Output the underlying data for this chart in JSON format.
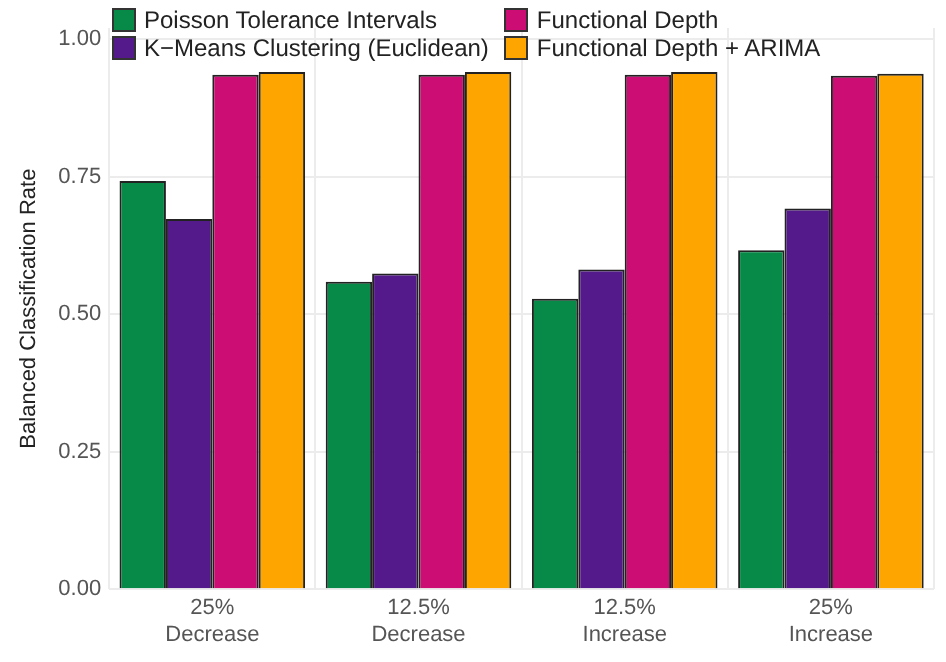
{
  "chart_data": {
    "type": "bar",
    "ylabel": "Balanced Classification Rate",
    "categories": [
      "25% Decrease",
      "12.5% Decrease",
      "12.5% Increase",
      "25% Increase"
    ],
    "series": [
      {
        "name": "Poisson Tolerance Intervals",
        "color": "#078a47",
        "values": [
          0.742,
          0.559,
          0.528,
          0.616
        ]
      },
      {
        "name": "K−Means Clustering (Euclidean)",
        "color": "#541a8b",
        "values": [
          0.673,
          0.574,
          0.581,
          0.692
        ]
      },
      {
        "name": "Functional Depth",
        "color": "#cc0e74",
        "values": [
          0.935,
          0.935,
          0.935,
          0.933
        ]
      },
      {
        "name": "Functional Depth + ARIMA",
        "color": "#ffa500",
        "values": [
          0.94,
          0.94,
          0.94,
          0.937
        ]
      }
    ],
    "ylim": [
      0,
      1.02
    ],
    "yticks": [
      {
        "value": 0,
        "label": "0.00"
      },
      {
        "value": 0.25,
        "label": "0.25"
      },
      {
        "value": 0.5,
        "label": "0.50"
      },
      {
        "value": 0.75,
        "label": "0.75"
      },
      {
        "value": 1,
        "label": "1.00"
      }
    ],
    "grid": true,
    "legend": "top left"
  }
}
